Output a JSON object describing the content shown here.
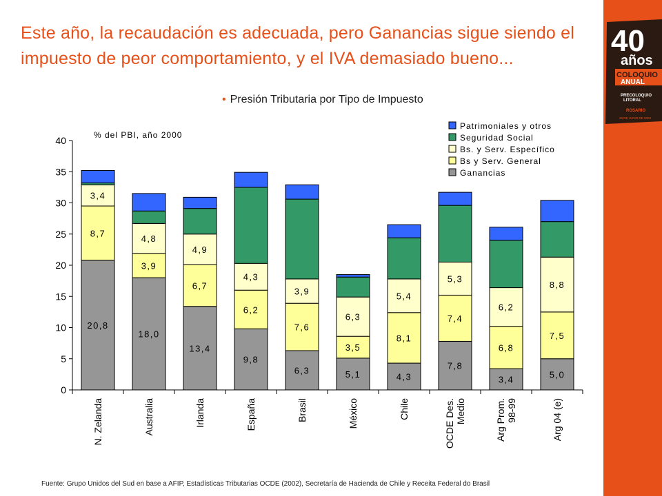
{
  "headline": "Este año, la recaudación es adecuada, pero Ganancias sigue siendo el impuesto de peor comportamiento,  y el IVA demasiado bueno...",
  "subtitle": "Presión Tributaria por Tipo de Impuesto",
  "source": "Fuente: Grupo Unidos del Sud en base a AFIP, Estadísticas Tributarias OCDE (2002), Secretaría de Hacienda de Chile y Receita Federal do Brasil",
  "badge": {
    "number": "40",
    "years": "años",
    "line1": "COLOQUIO",
    "line2": "ANUAL",
    "line3": "PRECOLOQUIO",
    "line4": "LITORAL",
    "city": "ROSARIO",
    "date": "29 DE JUNIO DE 2004"
  },
  "colors": {
    "accent": "#e8501a",
    "Ganancias": "#969696",
    "Bs y Serv. General": "#ffff99",
    "Bs. y Serv. Específico": "#ffffcc",
    "Seguridad Social": "#339966",
    "Patrimoniales y otros": "#3366ff"
  },
  "chart_data": {
    "type": "bar",
    "stacked": true,
    "ylabel": "% del PBI, año 2000",
    "ylim": [
      0,
      40
    ],
    "yticks": [
      0,
      5,
      10,
      15,
      20,
      25,
      30,
      35,
      40
    ],
    "legend_position": "top-right",
    "categories": [
      "N. Zelanda",
      "Australia",
      "Irlanda",
      "España",
      "Brasil",
      "México",
      "Chile",
      "OCDE Des. Medio",
      "Arg Prom. 98-99",
      "Arg 04 (e)"
    ],
    "category_lines": [
      [
        "N. Zelanda"
      ],
      [
        "Australia"
      ],
      [
        "Irlanda"
      ],
      [
        "España"
      ],
      [
        "Brasil"
      ],
      [
        "México"
      ],
      [
        "Chile"
      ],
      [
        "OCDE Des.",
        "Medio"
      ],
      [
        "Arg Prom.",
        "98-99"
      ],
      [
        "Arg 04 (e)"
      ]
    ],
    "series": [
      {
        "name": "Ganancias",
        "values": [
          20.8,
          18.0,
          13.4,
          9.8,
          6.3,
          5.1,
          4.3,
          7.8,
          3.4,
          5.0
        ],
        "labels": [
          "20,8",
          "18,0",
          "13,4",
          "9,8",
          "6,3",
          "5,1",
          "4,3",
          "7,8",
          "3,4",
          "5,0"
        ]
      },
      {
        "name": "Bs y Serv. General",
        "values": [
          8.7,
          3.9,
          6.7,
          6.2,
          7.6,
          3.5,
          8.1,
          7.4,
          6.8,
          7.5
        ],
        "labels": [
          "8,7",
          "3,9",
          "6,7",
          "6,2",
          "7,6",
          "3,5",
          "8,1",
          "7,4",
          "6,8",
          "7,5"
        ]
      },
      {
        "name": "Bs. y Serv. Específico",
        "values": [
          3.4,
          4.8,
          4.9,
          4.3,
          3.9,
          6.3,
          5.4,
          5.3,
          6.2,
          8.8
        ],
        "labels": [
          "3,4",
          "4,8",
          "4,9",
          "4,3",
          "3,9",
          "6,3",
          "5,4",
          "5,3",
          "6,2",
          "8,8"
        ]
      },
      {
        "name": "Seguridad Social",
        "values": [
          0.3,
          2.0,
          4.1,
          12.2,
          12.8,
          3.2,
          6.6,
          9.1,
          7.6,
          5.7
        ]
      },
      {
        "name": "Patrimoniales y otros",
        "values": [
          2.0,
          2.8,
          1.8,
          2.4,
          2.3,
          0.4,
          2.1,
          2.1,
          2.1,
          3.4
        ]
      }
    ]
  }
}
